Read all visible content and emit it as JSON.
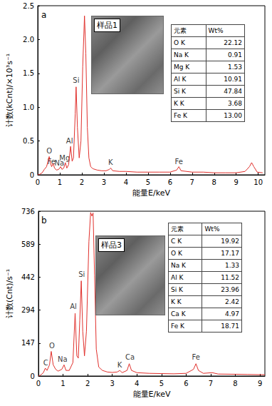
{
  "chart_data": [
    {
      "type": "line",
      "title": "a",
      "x_label": "能量E/keV",
      "y_label": "计数(kCnt)/×10³s⁻¹",
      "x": [
        0,
        0.1,
        0.2,
        0.3,
        0.4,
        0.45,
        0.52,
        0.58,
        0.63,
        0.7,
        0.76,
        0.85,
        0.95,
        1.04,
        1.1,
        1.18,
        1.25,
        1.32,
        1.4,
        1.49,
        1.56,
        1.62,
        1.7,
        1.74,
        1.8,
        1.88,
        1.96,
        2.04,
        2.12,
        2.18,
        2.25,
        2.32,
        2.4,
        2.5,
        2.7,
        2.9,
        3.1,
        3.25,
        3.31,
        3.4,
        3.7,
        4,
        4.5,
        5,
        5.5,
        6,
        6.3,
        6.4,
        6.5,
        7,
        7.5,
        8,
        8.5,
        9,
        9.4,
        9.6,
        9.7,
        9.8,
        9.95,
        10.2
      ],
      "values": [
        0,
        0.01,
        0.03,
        0.08,
        0.12,
        0.18,
        0.27,
        0.17,
        0.12,
        0.17,
        0.1,
        0.07,
        0.08,
        0.12,
        0.08,
        0.1,
        0.18,
        0.1,
        0.15,
        0.42,
        0.2,
        0.25,
        0.9,
        1.3,
        0.7,
        0.25,
        0.5,
        1.6,
        2.35,
        1.8,
        0.7,
        0.25,
        0.12,
        0.09,
        0.07,
        0.06,
        0.06,
        0.08,
        0.1,
        0.06,
        0.05,
        0.05,
        0.04,
        0.04,
        0.04,
        0.04,
        0.07,
        0.12,
        0.06,
        0.04,
        0.04,
        0.03,
        0.03,
        0.03,
        0.05,
        0.12,
        0.18,
        0.12,
        0.04,
        0.03
      ],
      "color": "#e0302c",
      "xlim": [
        0,
        10.3
      ],
      "xticks": [
        0,
        1,
        2,
        3,
        4,
        5,
        6,
        7,
        8,
        9,
        10
      ],
      "ylim": [
        0,
        2.5
      ],
      "yticks": [
        0,
        0.5,
        {
          "value": 1,
          "label": "1.0"
        },
        1.5,
        {
          "value": 2,
          "label": "2.0"
        },
        2.5
      ],
      "grid": false,
      "annotations": [
        {
          "text": "O",
          "x": 0.52,
          "y": 0.35
        },
        {
          "text": "Fe",
          "x": 0.62,
          "y": 0.2
        },
        {
          "text": "Na",
          "x": 0.98,
          "y": 0.17
        },
        {
          "text": "Mg",
          "x": 1.22,
          "y": 0.25
        },
        {
          "text": "Al",
          "x": 1.44,
          "y": 0.5
        },
        {
          "text": "Si",
          "x": 1.74,
          "y": 1.4
        },
        {
          "text": "K",
          "x": 3.3,
          "y": 0.18
        },
        {
          "text": "Fe",
          "x": 6.4,
          "y": 0.2
        }
      ],
      "inset_label": "样品1",
      "table": {
        "header": [
          "元素",
          "Wt%"
        ],
        "rows": [
          [
            "O K",
            "22.12"
          ],
          [
            "Na K",
            "0.91"
          ],
          [
            "Mg K",
            "1.53"
          ],
          [
            "Al K",
            "10.91"
          ],
          [
            "Si K",
            "47.84"
          ],
          [
            "K K",
            "3.68"
          ],
          [
            "Fe K",
            "13.00"
          ]
        ]
      }
    },
    {
      "type": "line",
      "title": "b",
      "x_label": "能量E/keV",
      "y_label": "计数(Cnt)/s⁻¹",
      "x": [
        0,
        0.1,
        0.2,
        0.28,
        0.35,
        0.45,
        0.52,
        0.6,
        0.7,
        0.8,
        0.95,
        1.04,
        1.12,
        1.25,
        1.4,
        1.49,
        1.56,
        1.62,
        1.68,
        1.74,
        1.8,
        1.87,
        1.95,
        2.05,
        2.12,
        2.17,
        2.22,
        2.28,
        2.35,
        2.45,
        2.6,
        2.8,
        3,
        3.2,
        3.31,
        3.4,
        3.6,
        3.69,
        3.78,
        4,
        4.5,
        5,
        5.5,
        6,
        6.3,
        6.4,
        6.5,
        6.7,
        7.06,
        7.3,
        8,
        8.5,
        9,
        9.2
      ],
      "values": [
        0,
        5,
        15,
        35,
        25,
        50,
        110,
        50,
        30,
        22,
        30,
        50,
        25,
        25,
        60,
        280,
        90,
        80,
        250,
        425,
        200,
        90,
        200,
        600,
        730,
        715,
        728,
        450,
        120,
        40,
        25,
        18,
        16,
        18,
        25,
        15,
        25,
        55,
        25,
        15,
        12,
        11,
        10,
        12,
        30,
        55,
        25,
        12,
        15,
        9,
        8,
        7,
        6,
        6
      ],
      "color": "#e0302c",
      "xlim": [
        0,
        9.2
      ],
      "xticks": [
        0,
        1,
        2,
        3,
        4,
        5,
        6,
        7,
        8,
        9
      ],
      "ylim": [
        0,
        736
      ],
      "yticks": [
        0,
        147,
        294,
        442,
        589,
        736
      ],
      "grid": false,
      "annotations": [
        {
          "text": "C",
          "x": 0.3,
          "y": 60
        },
        {
          "text": "O",
          "x": 0.55,
          "y": 135
        },
        {
          "text": "Na",
          "x": 0.98,
          "y": 75
        },
        {
          "text": "Al",
          "x": 1.42,
          "y": 310
        },
        {
          "text": "Si",
          "x": 1.76,
          "y": 455
        },
        {
          "text": "K",
          "x": 3.3,
          "y": 50
        },
        {
          "text": "Ca",
          "x": 3.72,
          "y": 85
        },
        {
          "text": "Fe",
          "x": 6.4,
          "y": 85
        }
      ],
      "inset_label": "样品3",
      "table": {
        "header": [
          "元素",
          "Wt%"
        ],
        "rows": [
          [
            "C K",
            "19.92"
          ],
          [
            "O K",
            "17.17"
          ],
          [
            "Na K",
            "1.33"
          ],
          [
            "Al K",
            "11.52"
          ],
          [
            "Si K",
            "23.96"
          ],
          [
            "K K",
            "2.42"
          ],
          [
            "Ca K",
            "4.97"
          ],
          [
            "Fe K",
            "18.71"
          ]
        ]
      }
    }
  ]
}
